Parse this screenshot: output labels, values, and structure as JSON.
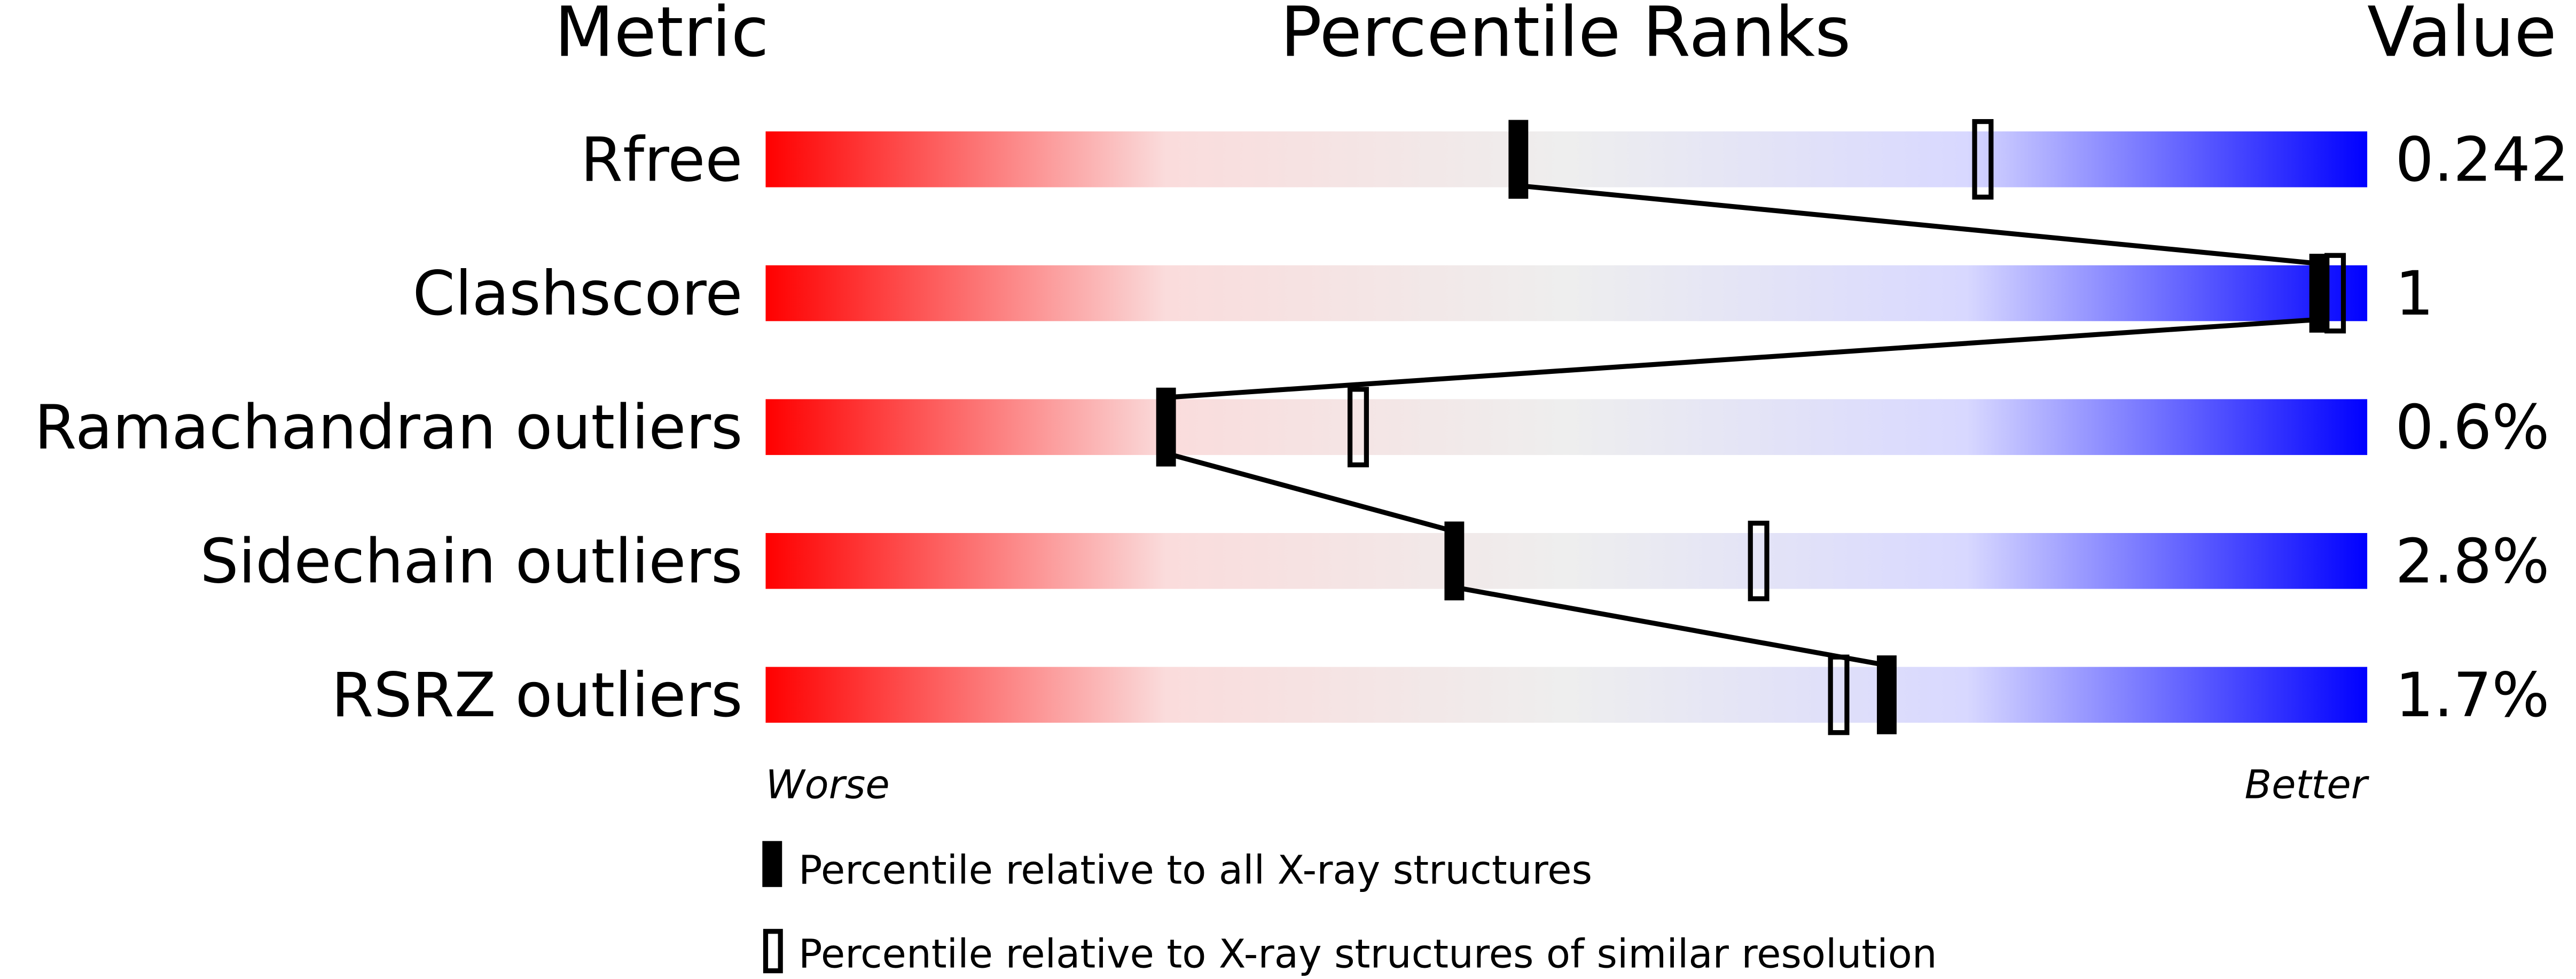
{
  "chart_data": {
    "type": "percentile-ranks",
    "headers": {
      "metric": "Metric",
      "ranks": "Percentile Ranks",
      "value": "Value"
    },
    "xlim": [
      0,
      100
    ],
    "axis_labels": {
      "left": "Worse",
      "right": "Better"
    },
    "gradient_colors": [
      "#ff0000",
      "#fadcdc",
      "#eeeeee",
      "#d8d8ff",
      "#0000ff"
    ],
    "rows": [
      {
        "metric": "Rfree",
        "value": "0.242",
        "percentile_all": 47,
        "percentile_similar": 76
      },
      {
        "metric": "Clashscore",
        "value": "1",
        "percentile_all": 97,
        "percentile_similar": 98
      },
      {
        "metric": "Ramachandran outliers",
        "value": "0.6%",
        "percentile_all": 25,
        "percentile_similar": 37
      },
      {
        "metric": "Sidechain outliers",
        "value": "2.8%",
        "percentile_all": 43,
        "percentile_similar": 62
      },
      {
        "metric": "RSRZ outliers",
        "value": "1.7%",
        "percentile_all": 70,
        "percentile_similar": 67
      }
    ],
    "legend": [
      {
        "marker": "filled",
        "label": "Percentile relative to all X-ray structures"
      },
      {
        "marker": "open",
        "label": "Percentile relative to X-ray structures of similar resolution"
      }
    ]
  }
}
